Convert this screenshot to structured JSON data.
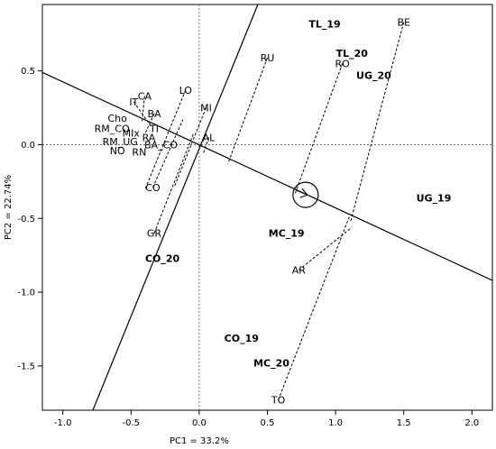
{
  "chart_data": {
    "type": "scatter",
    "title": "",
    "xlabel": "PC1 = 33.2%",
    "ylabel": "PC2 = 22.74%",
    "xlim": [
      -1.15,
      2.15
    ],
    "ylim": [
      -1.8,
      0.95
    ],
    "xticks": [
      -1.0,
      -0.5,
      0.0,
      0.5,
      1.0,
      1.5,
      2.0
    ],
    "xtick_labels": [
      "-1.0",
      "-0.5",
      "0.0",
      "0.5",
      "1.0",
      "1.5",
      "2.0"
    ],
    "yticks": [
      -1.5,
      -1.0,
      -0.5,
      0.0,
      0.5
    ],
    "ytick_labels": [
      "-1.5",
      "-1.0",
      "-0.5",
      "0.0",
      "0.5"
    ],
    "grid": false,
    "genotypes": [
      {
        "label": "BE",
        "x": 1.5,
        "y": 0.83
      },
      {
        "label": "RO",
        "x": 1.05,
        "y": 0.55
      },
      {
        "label": "RU",
        "x": 0.5,
        "y": 0.59
      },
      {
        "label": "LO",
        "x": -0.1,
        "y": 0.37
      },
      {
        "label": "MI",
        "x": 0.05,
        "y": 0.25
      },
      {
        "label": "AL",
        "x": 0.07,
        "y": 0.05
      },
      {
        "label": "IT",
        "x": -0.48,
        "y": 0.29
      },
      {
        "label": "CA",
        "x": -0.4,
        "y": 0.33
      },
      {
        "label": "BA",
        "x": -0.33,
        "y": 0.21
      },
      {
        "label": "Cho",
        "x": -0.6,
        "y": 0.18
      },
      {
        "label": "RM_CO",
        "x": -0.64,
        "y": 0.11
      },
      {
        "label": "MIx",
        "x": -0.5,
        "y": 0.08
      },
      {
        "label": "TI",
        "x": -0.33,
        "y": 0.11
      },
      {
        "label": "RA",
        "x": -0.37,
        "y": 0.05
      },
      {
        "label": "RM_UG",
        "x": -0.58,
        "y": 0.02
      },
      {
        "label": "BA_CO",
        "x": -0.28,
        "y": 0.0
      },
      {
        "label": "NO",
        "x": -0.6,
        "y": -0.04
      },
      {
        "label": "RN",
        "x": -0.44,
        "y": -0.05
      },
      {
        "label": "CO",
        "x": -0.34,
        "y": -0.29
      },
      {
        "label": "GR",
        "x": -0.33,
        "y": -0.6
      },
      {
        "label": "AR",
        "x": 0.73,
        "y": -0.85
      },
      {
        "label": "TO",
        "x": 0.58,
        "y": -1.73
      }
    ],
    "environments": [
      {
        "label": "TL_19",
        "x": 0.92,
        "y": 0.82
      },
      {
        "label": "TL_20",
        "x": 1.12,
        "y": 0.62
      },
      {
        "label": "UG_20",
        "x": 1.28,
        "y": 0.47
      },
      {
        "label": "UG_19",
        "x": 1.72,
        "y": -0.36
      },
      {
        "label": "MC_19",
        "x": 0.64,
        "y": -0.6
      },
      {
        "label": "CO_20",
        "x": -0.27,
        "y": -0.77
      },
      {
        "label": "CO_19",
        "x": 0.31,
        "y": -1.31
      },
      {
        "label": "MC_20",
        "x": 0.53,
        "y": -1.48
      }
    ],
    "average_environment_axis": {
      "from": [
        -1.15,
        0.49
      ],
      "to": [
        2.15,
        -0.92
      ]
    },
    "perpendicular_axis": {
      "from": [
        -0.78,
        -1.8
      ],
      "to": [
        0.43,
        0.95
      ]
    },
    "average_environment_marker": {
      "x": 0.78,
      "y": -0.34
    },
    "projections": [
      {
        "label": "BE",
        "from": [
          1.5,
          0.83
        ],
        "to": [
          1.11,
          -0.52
        ]
      },
      {
        "label": "RO",
        "from": [
          1.05,
          0.55
        ],
        "to": [
          0.7,
          -0.34
        ]
      },
      {
        "label": "RU",
        "from": [
          0.5,
          0.59
        ],
        "to": [
          0.21,
          -0.13
        ]
      },
      {
        "label": "LO",
        "from": [
          -0.1,
          0.37
        ],
        "to": [
          -0.4,
          -0.31
        ]
      },
      {
        "label": "MI",
        "from": [
          0.05,
          0.25
        ],
        "to": [
          -0.18,
          -0.28
        ]
      },
      {
        "label": "AL",
        "from": [
          0.07,
          0.05
        ],
        "to": [
          0.03,
          -0.06
        ]
      },
      {
        "label": "IT",
        "from": [
          -0.48,
          0.29
        ],
        "to": [
          -0.35,
          0.12
        ]
      },
      {
        "label": "CA",
        "from": [
          -0.4,
          0.33
        ],
        "to": [
          -0.42,
          0.15
        ]
      },
      {
        "label": "BA",
        "from": [
          -0.33,
          0.21
        ],
        "to": [
          -0.4,
          0.07
        ]
      },
      {
        "label": "CO",
        "from": [
          -0.34,
          -0.29
        ],
        "to": [
          -0.12,
          0.17
        ]
      },
      {
        "label": "GR",
        "from": [
          -0.33,
          -0.6
        ],
        "to": [
          -0.04,
          0.08
        ]
      },
      {
        "label": "AR",
        "from": [
          0.73,
          -0.85
        ],
        "to": [
          1.12,
          -0.56
        ]
      },
      {
        "label": "TO",
        "from": [
          0.58,
          -1.73
        ],
        "to": [
          1.1,
          -0.49
        ]
      }
    ]
  }
}
